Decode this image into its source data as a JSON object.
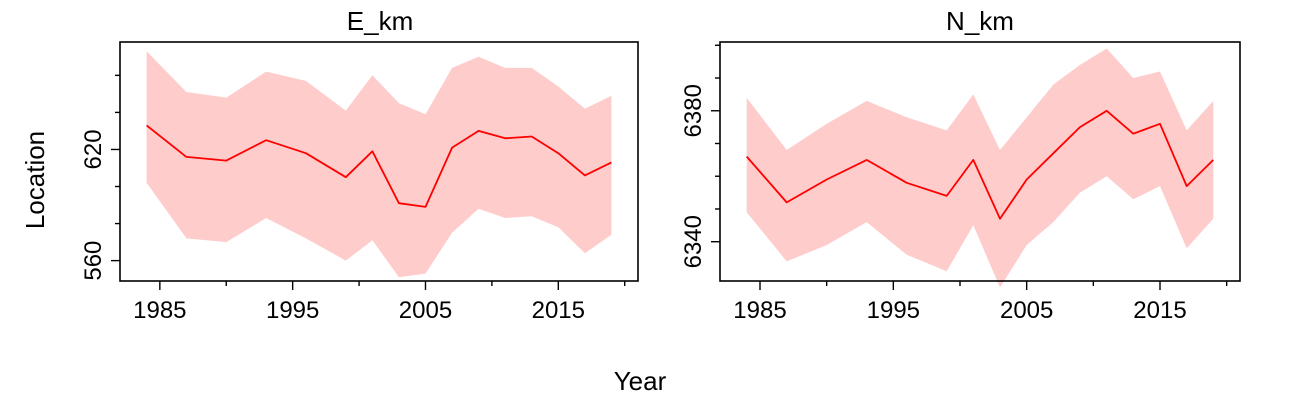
{
  "colors": {
    "band": "#FFCCCC",
    "line": "#FF0000"
  },
  "figure": {
    "ylabel": "Location",
    "xlabel": "Year"
  },
  "chart_data": [
    {
      "type": "line",
      "title": "E_km",
      "x": [
        1984,
        1987,
        1990,
        1993,
        1996,
        1999,
        2001,
        2003,
        2005,
        2007,
        2009,
        2011,
        2013,
        2015,
        2017,
        2019
      ],
      "series": [
        {
          "values": [
            633,
            616,
            614,
            625,
            618,
            605,
            619,
            591,
            589,
            621,
            630,
            626,
            627,
            618,
            606,
            613
          ]
        }
      ],
      "lower": [
        602,
        572,
        570,
        583,
        572,
        560,
        571,
        551,
        553,
        575,
        588,
        583,
        584,
        578,
        564,
        574
      ],
      "upper": [
        673,
        651,
        648,
        662,
        657,
        641,
        660,
        645,
        639,
        664,
        670,
        664,
        664,
        654,
        642,
        649
      ],
      "xlim": [
        1982,
        2021
      ],
      "ylim": [
        549,
        678
      ],
      "xticks": [
        1985,
        1995,
        2005,
        2015
      ],
      "xminor": [
        1990,
        2000,
        2010,
        2020
      ],
      "yticks": [
        560,
        620
      ],
      "yminor": [
        580,
        600,
        640,
        660
      ],
      "ytick_labels": [
        "560",
        "620"
      ]
    },
    {
      "type": "line",
      "title": "N_km",
      "x": [
        1984,
        1987,
        1990,
        1993,
        1996,
        1999,
        2001,
        2003,
        2005,
        2007,
        2009,
        2011,
        2013,
        2015,
        2017,
        2019
      ],
      "series": [
        {
          "values": [
            6366,
            6352,
            6359,
            6365,
            6358,
            6354,
            6365,
            6347,
            6359,
            6367,
            6375,
            6380,
            6373,
            6376,
            6357,
            6365
          ]
        }
      ],
      "lower": [
        6349,
        6334,
        6339,
        6346,
        6336,
        6331,
        6345,
        6326,
        6339,
        6346,
        6355,
        6360,
        6353,
        6357,
        6338,
        6347
      ],
      "upper": [
        6384,
        6368,
        6376,
        6383,
        6378,
        6374,
        6385,
        6368,
        6378,
        6388,
        6394,
        6399,
        6390,
        6392,
        6374,
        6383
      ],
      "xlim": [
        1982,
        2021
      ],
      "ylim": [
        6328,
        6401
      ],
      "xticks": [
        1985,
        1995,
        2005,
        2015
      ],
      "xminor": [
        1990,
        2000,
        2010,
        2020
      ],
      "yticks": [
        6340,
        6380
      ],
      "yminor": [
        6350,
        6360,
        6370,
        6390,
        6400
      ],
      "ytick_labels": [
        "6340",
        "6380"
      ]
    }
  ]
}
